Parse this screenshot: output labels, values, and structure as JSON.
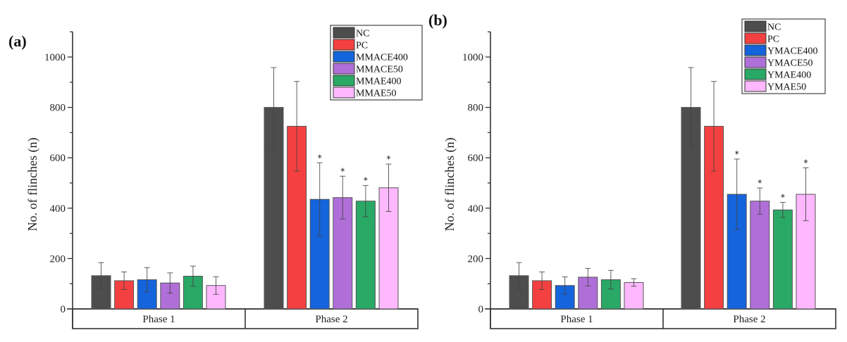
{
  "chart_data": [
    {
      "type": "bar",
      "panel_label": "(a)",
      "ylabel": "No. of flinches (n)",
      "xlabel": "",
      "ylim": [
        0,
        1100
      ],
      "yticks": [
        0,
        200,
        400,
        600,
        800,
        1000
      ],
      "categories": [
        "Phase 1",
        "Phase 2"
      ],
      "legend_position": "top-right",
      "grid": false,
      "series": [
        {
          "name": "NC",
          "color": "#4d4d4d",
          "values": [
            132,
            800
          ],
          "errors": [
            52,
            158
          ],
          "significant": [
            false,
            false
          ]
        },
        {
          "name": "PC",
          "color": "#f44040",
          "values": [
            112,
            725
          ],
          "errors": [
            35,
            178
          ],
          "significant": [
            false,
            false
          ]
        },
        {
          "name": "MMACE400",
          "color": "#1464dc",
          "values": [
            116,
            435
          ],
          "errors": [
            48,
            145
          ],
          "significant": [
            false,
            true
          ]
        },
        {
          "name": "MMACE50",
          "color": "#b06fd8",
          "values": [
            103,
            442
          ],
          "errors": [
            40,
            85
          ],
          "significant": [
            false,
            true
          ]
        },
        {
          "name": "MMAE400",
          "color": "#2aa866",
          "values": [
            130,
            428
          ],
          "errors": [
            40,
            62
          ],
          "significant": [
            false,
            true
          ]
        },
        {
          "name": "MMAE50",
          "color": "#ffb8ff",
          "values": [
            93,
            481
          ],
          "errors": [
            35,
            94
          ],
          "significant": [
            false,
            true
          ]
        }
      ],
      "significance_marker": "*"
    },
    {
      "type": "bar",
      "panel_label": "(b)",
      "ylabel": "No. of flinches (n)",
      "xlabel": "",
      "ylim": [
        0,
        1100
      ],
      "yticks": [
        0,
        200,
        400,
        600,
        800,
        1000
      ],
      "categories": [
        "Phase 1",
        "Phase 2"
      ],
      "legend_position": "top-right",
      "grid": false,
      "series": [
        {
          "name": "NC",
          "color": "#4d4d4d",
          "values": [
            132,
            800
          ],
          "errors": [
            52,
            158
          ],
          "significant": [
            false,
            false
          ]
        },
        {
          "name": "PC",
          "color": "#f44040",
          "values": [
            112,
            725
          ],
          "errors": [
            35,
            178
          ],
          "significant": [
            false,
            false
          ]
        },
        {
          "name": "YMACE400",
          "color": "#1464dc",
          "values": [
            93,
            455
          ],
          "errors": [
            34,
            140
          ],
          "significant": [
            false,
            true
          ]
        },
        {
          "name": "YMACE50",
          "color": "#b06fd8",
          "values": [
            126,
            428
          ],
          "errors": [
            35,
            52
          ],
          "significant": [
            false,
            true
          ]
        },
        {
          "name": "YMAE400",
          "color": "#2aa866",
          "values": [
            116,
            393
          ],
          "errors": [
            37,
            30
          ],
          "significant": [
            false,
            true
          ]
        },
        {
          "name": "YMAE50",
          "color": "#ffb8ff",
          "values": [
            105,
            455
          ],
          "errors": [
            15,
            105
          ],
          "significant": [
            false,
            true
          ]
        }
      ],
      "significance_marker": "*"
    }
  ]
}
